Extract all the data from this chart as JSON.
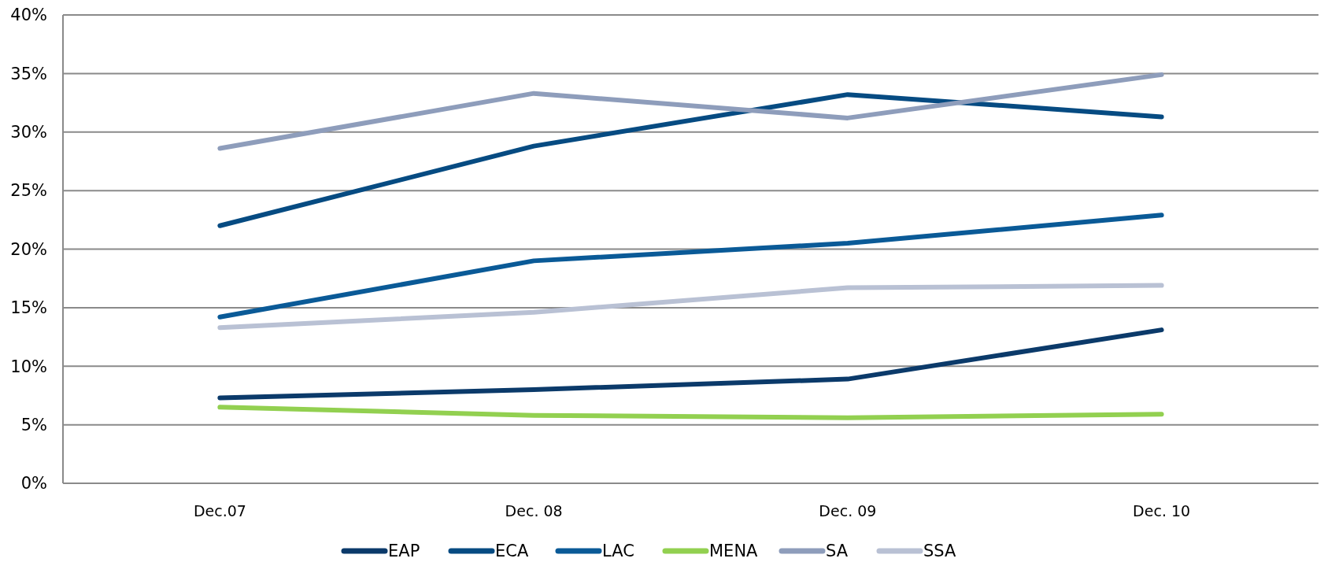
{
  "chart_data": {
    "type": "line",
    "categories": [
      "Dec.07",
      "Dec. 08",
      "Dec. 09",
      "Dec. 10"
    ],
    "series": [
      {
        "name": "EAP",
        "color": "#0b3a6a",
        "values": [
          7.3,
          8.0,
          8.9,
          13.1
        ]
      },
      {
        "name": "ECA",
        "color": "#064b82",
        "values": [
          22.0,
          28.8,
          33.2,
          31.3
        ]
      },
      {
        "name": "LAC",
        "color": "#0a5a97",
        "values": [
          14.2,
          19.0,
          20.5,
          22.9
        ]
      },
      {
        "name": "MENA",
        "color": "#92d050",
        "values": [
          6.5,
          5.8,
          5.6,
          5.9
        ]
      },
      {
        "name": "SA",
        "color": "#8e9dbb",
        "values": [
          28.6,
          33.3,
          31.2,
          34.9
        ]
      },
      {
        "name": "SSA",
        "color": "#b9c1d4",
        "values": [
          13.3,
          14.6,
          16.7,
          16.9
        ]
      }
    ],
    "ylim": [
      0,
      40
    ],
    "yticks": [
      {
        "value": 0,
        "label": "0%"
      },
      {
        "value": 5,
        "label": "5%"
      },
      {
        "value": 10,
        "label": "10%"
      },
      {
        "value": 15,
        "label": "15%"
      },
      {
        "value": 20,
        "label": "20%"
      },
      {
        "value": 25,
        "label": "25%"
      },
      {
        "value": 30,
        "label": "30%"
      },
      {
        "value": 35,
        "label": "35%"
      },
      {
        "value": 40,
        "label": "40%"
      }
    ],
    "grid": "y",
    "legend": "bottom",
    "marker": "none",
    "line_style": "solid"
  }
}
